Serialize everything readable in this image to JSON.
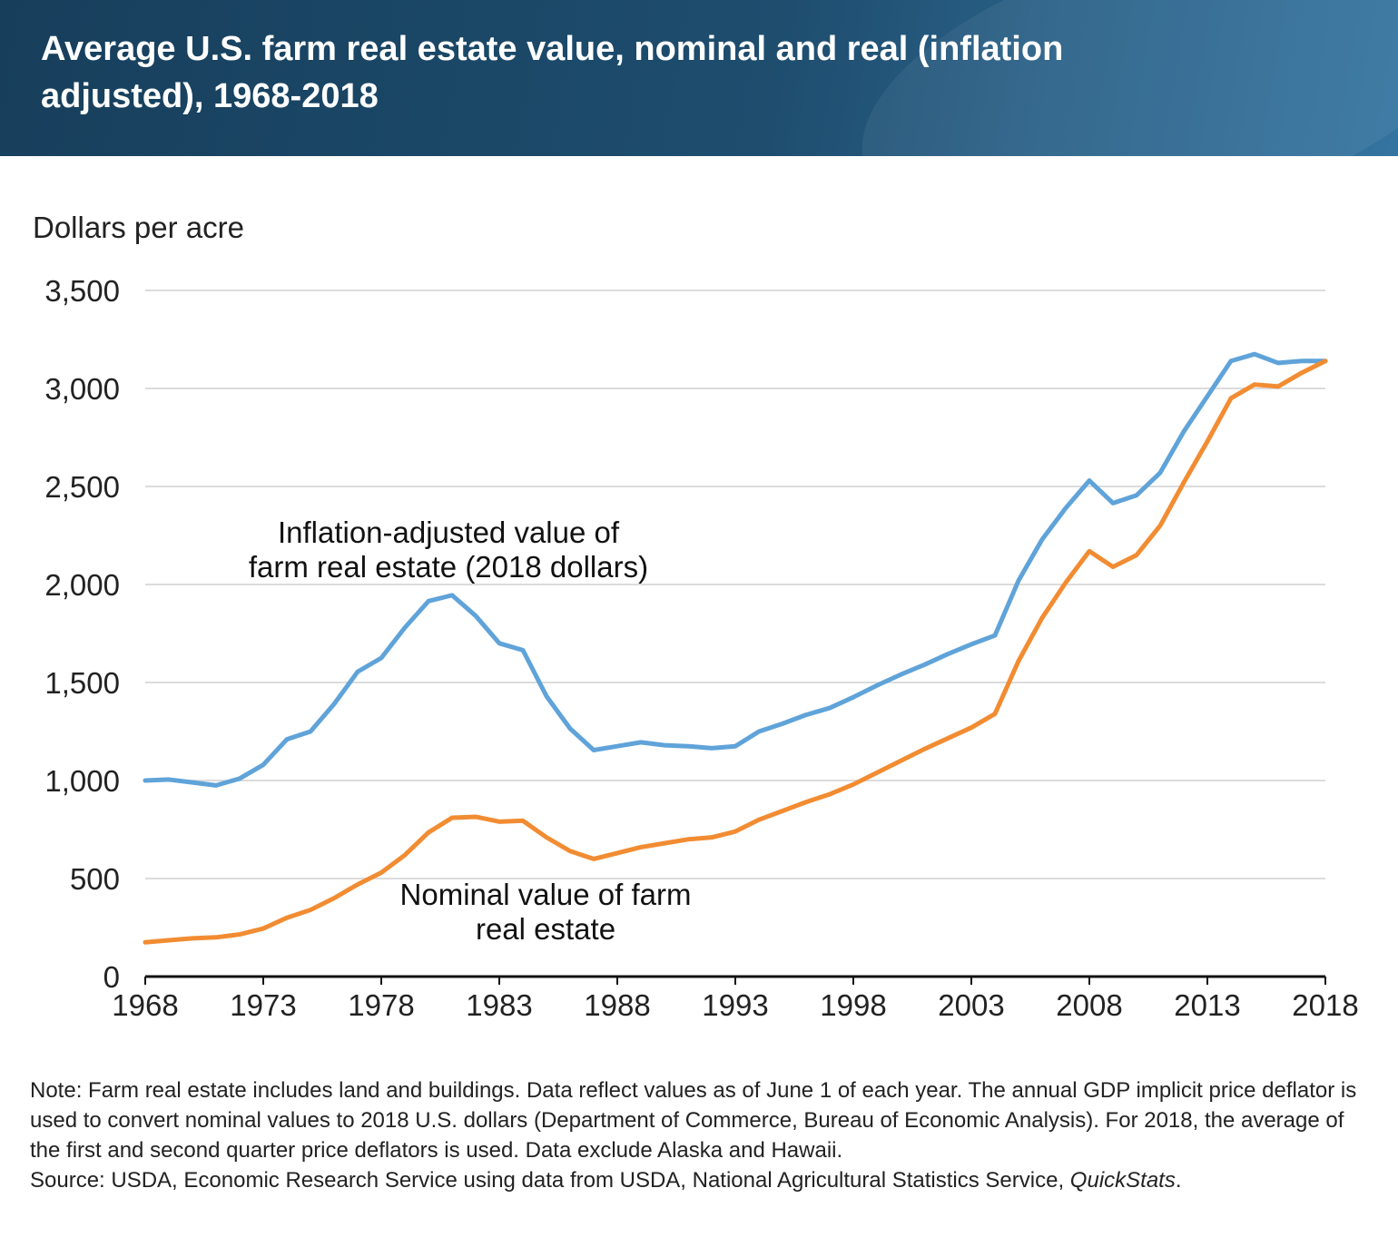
{
  "header": {
    "title": "Average U.S. farm real estate value, nominal and real (inflation adjusted), 1968-2018"
  },
  "chart_data": {
    "type": "line",
    "title": "Average U.S. farm real estate value, nominal and real (inflation adjusted), 1968-2018",
    "ylabel": "Dollars per acre",
    "xlabel": "",
    "xlim": [
      1968,
      2018
    ],
    "ylim": [
      0,
      3500
    ],
    "xticks": [
      1968,
      1973,
      1978,
      1983,
      1988,
      1993,
      1998,
      2003,
      2008,
      2013,
      2018
    ],
    "yticks": [
      0,
      500,
      1000,
      1500,
      2000,
      2500,
      3000,
      3500
    ],
    "ytick_labels": [
      "0",
      "500",
      "1,000",
      "1,500",
      "2,000",
      "2,500",
      "3,000",
      "3,500"
    ],
    "grid": "horizontal",
    "legend": "none (inline annotations)",
    "x": [
      1968,
      1969,
      1970,
      1971,
      1972,
      1973,
      1974,
      1975,
      1976,
      1977,
      1978,
      1979,
      1980,
      1981,
      1982,
      1983,
      1984,
      1985,
      1986,
      1987,
      1988,
      1989,
      1990,
      1991,
      1992,
      1993,
      1994,
      1995,
      1996,
      1997,
      1998,
      1999,
      2000,
      2001,
      2002,
      2003,
      2004,
      2005,
      2006,
      2007,
      2008,
      2009,
      2010,
      2011,
      2012,
      2013,
      2014,
      2015,
      2016,
      2017,
      2018
    ],
    "series": [
      {
        "name": "Inflation-adjusted value of farm real estate (2018 dollars)",
        "color": "#5fa3d9",
        "values": [
          1000,
          1005,
          990,
          975,
          1010,
          1080,
          1210,
          1250,
          1390,
          1555,
          1625,
          1780,
          1915,
          1945,
          1840,
          1700,
          1665,
          1430,
          1265,
          1155,
          1175,
          1195,
          1180,
          1175,
          1165,
          1175,
          1250,
          1290,
          1335,
          1370,
          1425,
          1485,
          1540,
          1590,
          1645,
          1695,
          1740,
          2020,
          2230,
          2390,
          2530,
          2415,
          2455,
          2570,
          2780,
          2960,
          3140,
          3175,
          3130,
          3140,
          3140
        ]
      },
      {
        "name": "Nominal value of farm real estate",
        "color": "#f28c32",
        "values": [
          175,
          185,
          195,
          200,
          215,
          245,
          300,
          340,
          400,
          470,
          530,
          620,
          735,
          810,
          815,
          790,
          795,
          710,
          640,
          600,
          630,
          660,
          680,
          700,
          710,
          740,
          800,
          845,
          890,
          930,
          980,
          1040,
          1100,
          1160,
          1215,
          1270,
          1340,
          1610,
          1830,
          2010,
          2170,
          2090,
          2150,
          2300,
          2520,
          2730,
          2950,
          3020,
          3010,
          3080,
          3140
        ]
      }
    ],
    "annotations": [
      {
        "line1": "Inflation-adjusted value of",
        "line2": "farm real estate (2018 dollars)"
      },
      {
        "line1": "Nominal value of farm",
        "line2": "real estate"
      }
    ]
  },
  "note": {
    "text": "Note: Farm real estate includes land and buildings. Data reflect values as of June 1 of each year. The annual GDP implicit price deflator is used to convert nominal values to 2018 U.S. dollars (Department of Commerce, Bureau of Economic Analysis). For 2018, the average of the first and second quarter price deflators is used. Data exclude Alaska and Hawaii.",
    "source_prefix": "Source: USDA, Economic Research Service using data from USDA, National Agricultural Statistics Service, ",
    "source_italic": "QuickStats",
    "source_suffix": "."
  }
}
